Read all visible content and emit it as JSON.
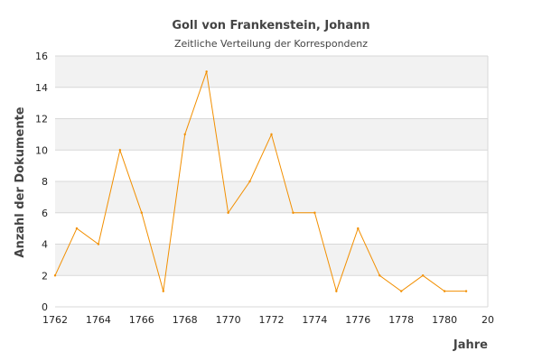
{
  "chart_data": {
    "type": "line",
    "title": "Goll von Frankenstein, Johann",
    "subtitle": "Zeitliche Verteilung der Korrespondenz",
    "xlabel": "Jahre",
    "ylabel": "Anzahl der Dokumente",
    "xlim": [
      1762,
      1782
    ],
    "ylim": [
      0,
      16
    ],
    "x_ticks": [
      "1762",
      "1764",
      "1766",
      "1768",
      "1770",
      "1772",
      "1774",
      "1776",
      "1778",
      "1780",
      "20"
    ],
    "y_ticks": [
      "0",
      "2",
      "4",
      "6",
      "8",
      "10",
      "12",
      "14",
      "16"
    ],
    "grid": true,
    "series": [
      {
        "x": [
          1762,
          1763,
          1764,
          1765,
          1766,
          1767,
          1768,
          1769,
          1770,
          1771,
          1772,
          1773,
          1774,
          1775,
          1776,
          1777,
          1778,
          1779,
          1780,
          1781
        ],
        "values": [
          2,
          5,
          4,
          10,
          6,
          1,
          11,
          15,
          6,
          8,
          11,
          6,
          6,
          1,
          5,
          2,
          1,
          2,
          1,
          1
        ],
        "color": "#f28f00"
      }
    ],
    "band_colors": [
      "#f2f2f2",
      "#ffffff"
    ],
    "line_color": "#f28f00"
  }
}
